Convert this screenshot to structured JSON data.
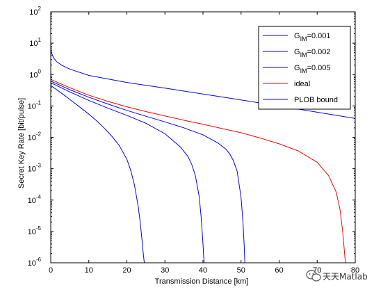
{
  "chart_data": {
    "type": "line",
    "title": "",
    "xlabel": "Transmission Distance [km]",
    "ylabel": "Secret Key Rate [bit/pulse]",
    "xlim": [
      0,
      80
    ],
    "ylim": [
      1e-06,
      100
    ],
    "yscale": "log",
    "xticks": [
      0,
      10,
      20,
      30,
      40,
      50,
      60,
      70,
      80
    ],
    "yticks": [
      {
        "base": "10",
        "exp": "-6"
      },
      {
        "base": "10",
        "exp": "-5"
      },
      {
        "base": "10",
        "exp": "-4"
      },
      {
        "base": "10",
        "exp": "-3"
      },
      {
        "base": "10",
        "exp": "-2"
      },
      {
        "base": "10",
        "exp": "-1"
      },
      {
        "base": "10",
        "exp": "0"
      },
      {
        "base": "10",
        "exp": "1"
      },
      {
        "base": "10",
        "exp": "2"
      }
    ],
    "grid": false,
    "legend_position": "top-right",
    "series": [
      {
        "name": {
          "main": "G",
          "sub": "IM",
          "rest": "=0.001"
        },
        "color": "#0000ff",
        "x": [
          0,
          2,
          4,
          6,
          8,
          10,
          12,
          14,
          16,
          18,
          20,
          21,
          22,
          23,
          23.5,
          24,
          24.3,
          24.5,
          24.6,
          24.6
        ],
        "y": [
          0.45,
          0.3,
          0.2,
          0.13,
          0.085,
          0.055,
          0.034,
          0.02,
          0.011,
          0.0055,
          0.002,
          0.0009,
          0.0003,
          6e-05,
          2e-05,
          5e-06,
          2e-06,
          1.2e-06,
          1e-06,
          1e-06
        ]
      },
      {
        "name": {
          "main": "G",
          "sub": "IM",
          "rest": "=0.002"
        },
        "color": "#0000ff",
        "x": [
          0,
          5,
          10,
          15,
          20,
          25,
          30,
          34,
          36,
          37,
          38,
          39,
          39.5,
          40,
          40.2,
          40.3
        ],
        "y": [
          0.55,
          0.28,
          0.15,
          0.085,
          0.05,
          0.028,
          0.013,
          0.005,
          0.0025,
          0.0014,
          0.0006,
          0.00013,
          3e-05,
          4e-06,
          1.5e-06,
          1e-06
        ]
      },
      {
        "name": {
          "main": "G",
          "sub": "IM",
          "rest": "=0.005"
        },
        "color": "#0000ff",
        "x": [
          0,
          5,
          10,
          15,
          20,
          25,
          30,
          35,
          40,
          44,
          46,
          47,
          48,
          49,
          50,
          50.5,
          50.8,
          51
        ],
        "y": [
          0.62,
          0.33,
          0.19,
          0.115,
          0.072,
          0.047,
          0.031,
          0.02,
          0.012,
          0.0065,
          0.0042,
          0.003,
          0.0018,
          0.0008,
          0.00012,
          2e-05,
          4e-06,
          1e-06
        ]
      },
      {
        "name": {
          "main": "ideal",
          "sub": "",
          "rest": ""
        },
        "color": "#ff0000",
        "x": [
          0,
          5,
          10,
          15,
          20,
          25,
          30,
          35,
          40,
          45,
          50,
          55,
          60,
          65,
          70,
          73,
          75,
          76,
          76.7,
          77.2,
          77.4
        ],
        "y": [
          0.7,
          0.38,
          0.22,
          0.14,
          0.094,
          0.066,
          0.048,
          0.035,
          0.026,
          0.019,
          0.014,
          0.0095,
          0.0062,
          0.0037,
          0.0016,
          0.0006,
          0.00018,
          5e-05,
          1e-05,
          2e-06,
          1e-06
        ]
      },
      {
        "name": {
          "main": "PLOB bound",
          "sub": "",
          "rest": ""
        },
        "color": "#0000ff",
        "x": [
          0,
          0.3,
          0.7,
          1.5,
          3,
          5,
          10,
          20,
          30,
          40,
          50,
          60,
          70,
          80
        ],
        "y": [
          6.5,
          4.6,
          3.5,
          2.6,
          1.95,
          1.5,
          0.94,
          0.56,
          0.37,
          0.24,
          0.155,
          0.1,
          0.063,
          0.04
        ]
      }
    ]
  },
  "watermark": {
    "text": "天天Matlab",
    "icon": "wechat-icon"
  }
}
